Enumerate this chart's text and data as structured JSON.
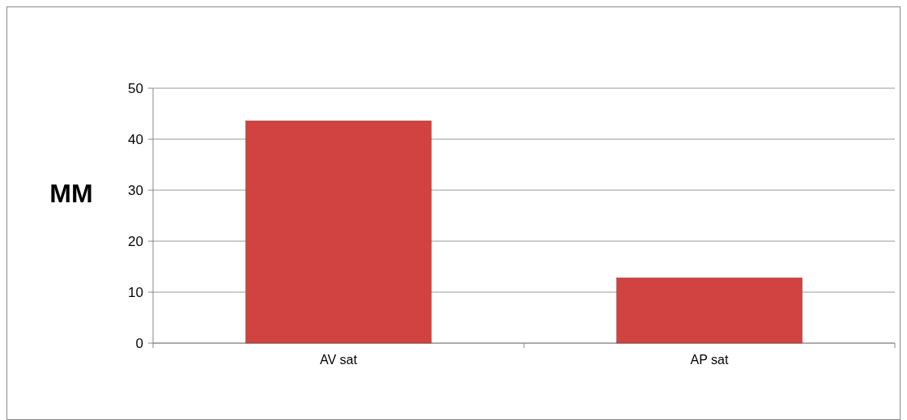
{
  "chart_data": {
    "type": "bar",
    "ylabel": "MM",
    "categories": [
      "AV sat",
      "AP sat"
    ],
    "values": [
      43.6,
      12.8
    ],
    "color": "#d04340",
    "ylim": [
      0,
      50
    ],
    "yticks": [
      0,
      10,
      20,
      30,
      40,
      50
    ],
    "grid": "y"
  }
}
